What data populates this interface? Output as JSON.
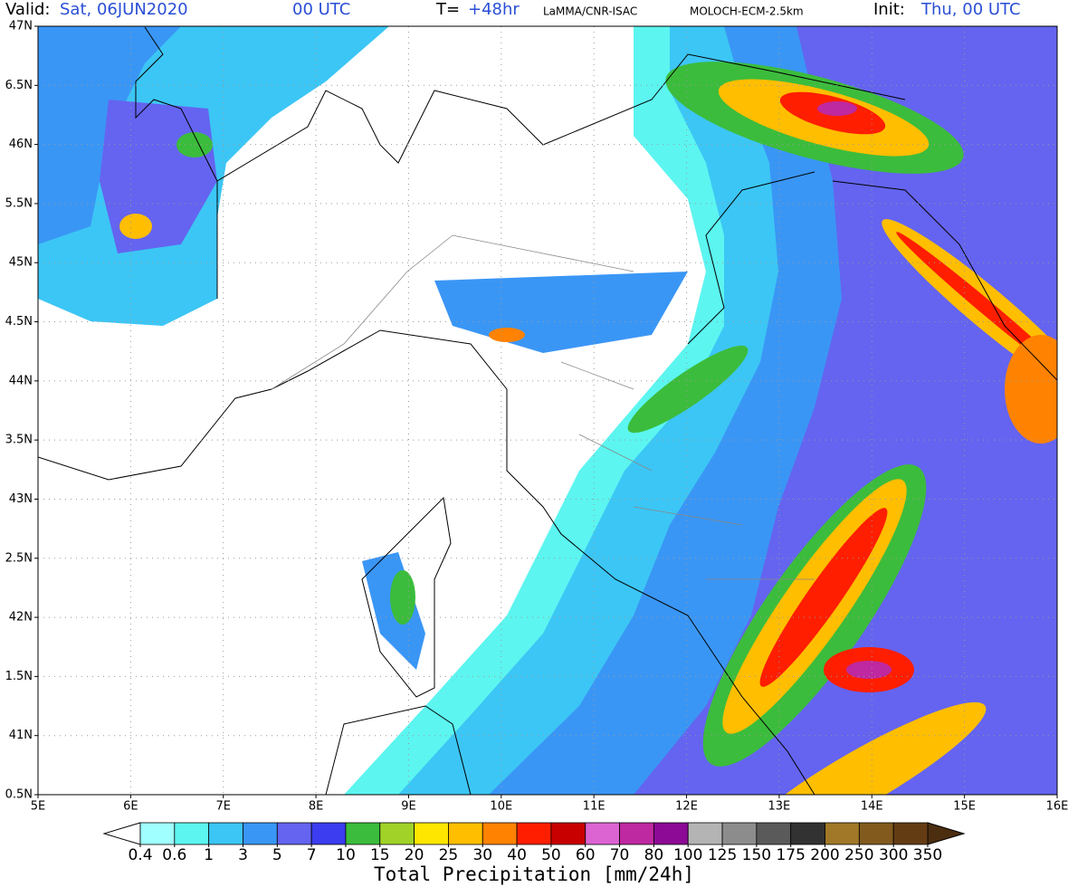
{
  "header": {
    "valid_label": "Valid:",
    "valid_time": "Sat, 06JUN2020",
    "valid_hour": "00 UTC",
    "lead_label": "T=",
    "lead": "+48hr",
    "source": "LaMMA/CNR-ISAC",
    "model": "MOLOCH-ECM-2.5km",
    "init_label": "Init:",
    "init_time": "Thu, 00 UTC"
  },
  "map": {
    "lat_range": [
      47,
      40.5
    ],
    "lon_range": [
      5,
      16
    ],
    "lat_ticks": [
      {
        "value": 47,
        "label": "47N"
      },
      {
        "value": 46.5,
        "label": "6.5N"
      },
      {
        "value": 46,
        "label": "46N"
      },
      {
        "value": 45.5,
        "label": "5.5N"
      },
      {
        "value": 45,
        "label": "45N"
      },
      {
        "value": 44.5,
        "label": "4.5N"
      },
      {
        "value": 44,
        "label": "44N"
      },
      {
        "value": 43.5,
        "label": "3.5N"
      },
      {
        "value": 43,
        "label": "43N"
      },
      {
        "value": 42.5,
        "label": "2.5N"
      },
      {
        "value": 42,
        "label": "42N"
      },
      {
        "value": 41.5,
        "label": "1.5N"
      },
      {
        "value": 41,
        "label": "41N"
      },
      {
        "value": 40.5,
        "label": "0.5N"
      }
    ],
    "lon_ticks": [
      {
        "value": 5,
        "label": "5E"
      },
      {
        "value": 6,
        "label": "6E"
      },
      {
        "value": 7,
        "label": "7E"
      },
      {
        "value": 8,
        "label": "8E"
      },
      {
        "value": 9,
        "label": "9E"
      },
      {
        "value": 10,
        "label": "10E"
      },
      {
        "value": 11,
        "label": "11E"
      },
      {
        "value": 12,
        "label": "12E"
      },
      {
        "value": 13,
        "label": "13E"
      },
      {
        "value": 14,
        "label": "14E"
      },
      {
        "value": 15,
        "label": "15E"
      },
      {
        "value": 16,
        "label": "16E"
      }
    ]
  },
  "colorbar": {
    "title": "Total Precipitation [mm/24h]",
    "levels": [
      0.4,
      0.6,
      1,
      3,
      5,
      7,
      10,
      15,
      20,
      25,
      30,
      40,
      50,
      60,
      70,
      80,
      100,
      125,
      150,
      175,
      200,
      250,
      300,
      350
    ],
    "colors": [
      "#a0ffff",
      "#5cf5f0",
      "#3cc6f5",
      "#3a96f5",
      "#6464f0",
      "#3c3cf0",
      "#3cbc3c",
      "#a0d228",
      "#ffe600",
      "#ffbe00",
      "#ff8200",
      "#ff1e00",
      "#c80000",
      "#dc64d2",
      "#be28a0",
      "#8c0a96",
      "#b4b4b4",
      "#8c8c8c",
      "#5a5a5a",
      "#323232",
      "#a07828",
      "#825a1e",
      "#643c14"
    ],
    "under_color": "#ffffff",
    "over_color": "#4b2d0f"
  }
}
